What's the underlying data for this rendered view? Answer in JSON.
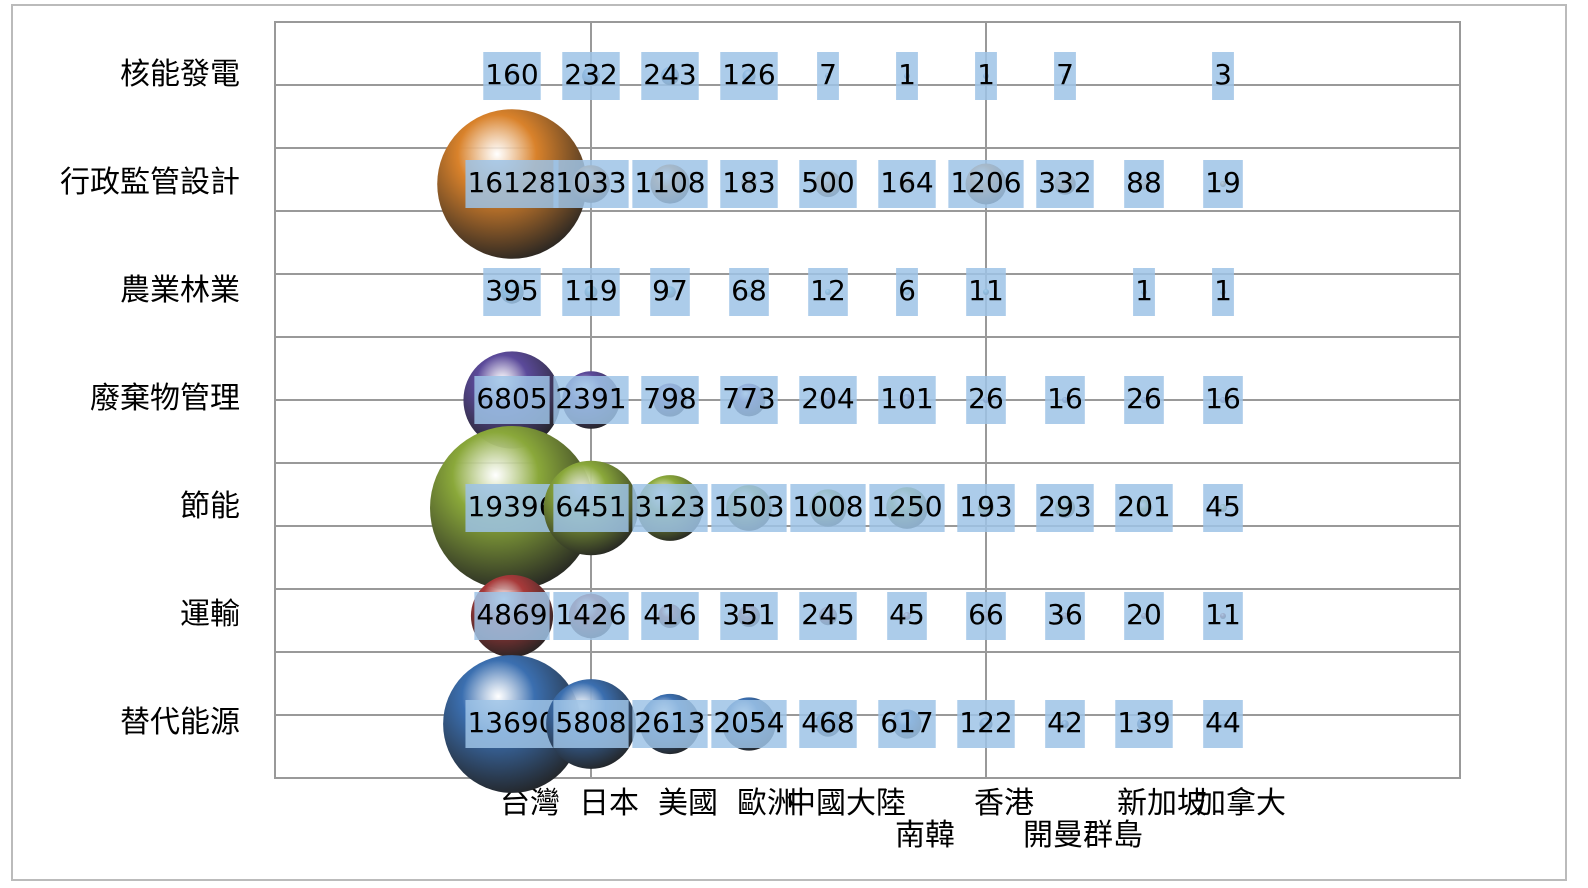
{
  "chart_data": {
    "type": "bubble",
    "categories": [
      "台灣",
      "日本",
      "美國",
      "歐洲",
      "中國大陸",
      "南韓",
      "香港",
      "開曼群島",
      "新加坡",
      "加拿大"
    ],
    "series": [
      {
        "name": "核能發電",
        "color": "#4f8fcf",
        "values": [
          160,
          232,
          243,
          126,
          7,
          1,
          1,
          7,
          null,
          3
        ]
      },
      {
        "name": "行政監管設計",
        "color": "#d9822b",
        "values": [
          16128,
          1033,
          1108,
          183,
          500,
          164,
          1206,
          332,
          88,
          19
        ]
      },
      {
        "name": "農業林業",
        "color": "#4aacc6",
        "values": [
          395,
          119,
          97,
          68,
          12,
          6,
          11,
          null,
          1,
          1
        ]
      },
      {
        "name": "廢棄物管理",
        "color": "#5b4a9a",
        "values": [
          6805,
          2391,
          798,
          773,
          204,
          101,
          26,
          16,
          26,
          16
        ]
      },
      {
        "name": "節能",
        "color": "#8aa83a",
        "values": [
          19396,
          6451,
          3123,
          1503,
          1008,
          1250,
          193,
          293,
          201,
          45
        ]
      },
      {
        "name": "運輸",
        "color": "#a83a3a",
        "values": [
          4869,
          1426,
          416,
          351,
          245,
          45,
          66,
          36,
          20,
          11
        ]
      },
      {
        "name": "替代能源",
        "color": "#3b6fb0",
        "values": [
          13690,
          5808,
          2613,
          2054,
          468,
          617,
          122,
          42,
          139,
          44
        ]
      }
    ],
    "grid": true
  }
}
